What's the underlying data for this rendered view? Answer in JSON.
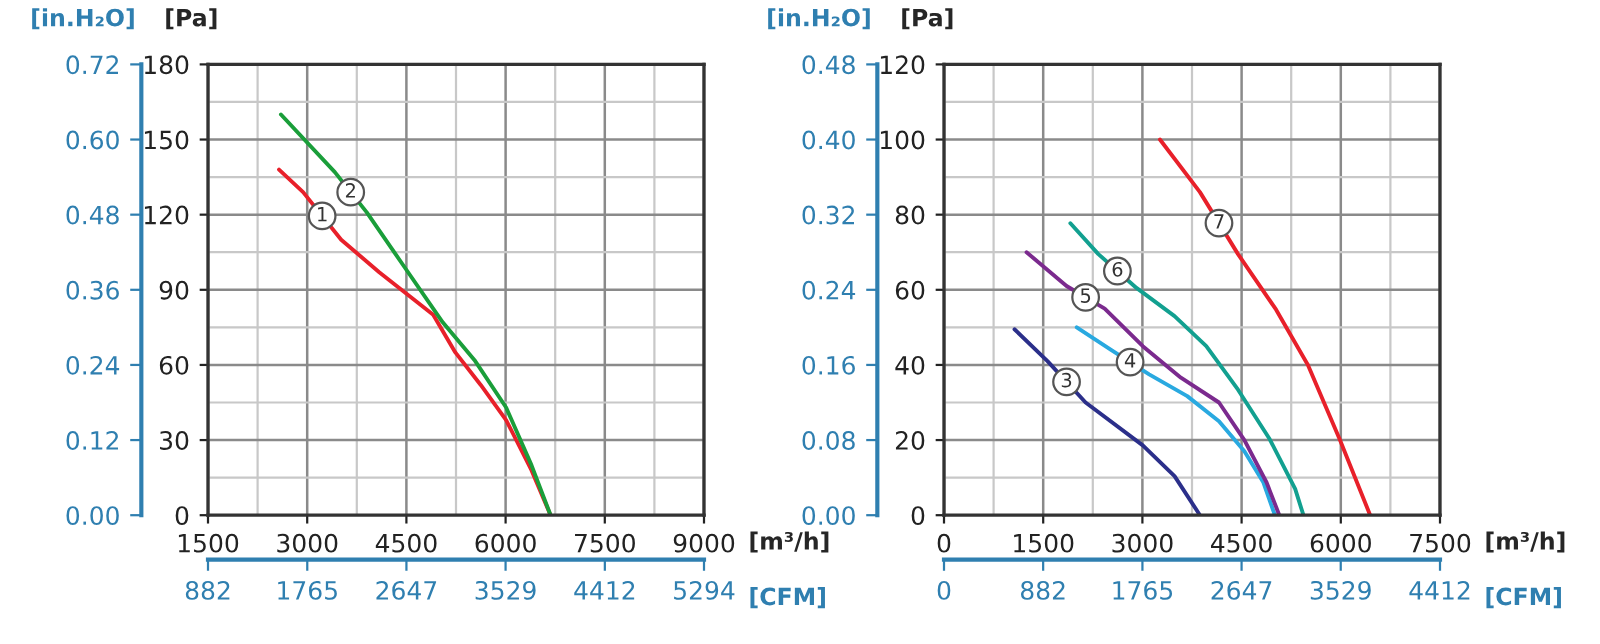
{
  "chart_data": [
    {
      "type": "line",
      "xlabel": "[m³/h]",
      "ylabel": "[Pa]",
      "y2label": "[in.H₂O]",
      "x2label": "[CFM]",
      "xlim": [
        1500,
        9000
      ],
      "xticks": [
        1500,
        3000,
        4500,
        6000,
        7500,
        9000
      ],
      "ylim": [
        0,
        180
      ],
      "yticks": [
        0,
        30,
        60,
        90,
        120,
        150,
        180
      ],
      "y2lim": [
        0,
        0.72
      ],
      "y2ticks": [
        {
          "value": 0,
          "label": "0.00"
        },
        {
          "value": 0.12,
          "label": "0.12"
        },
        {
          "value": 0.24,
          "label": "0.24"
        },
        {
          "value": 0.36,
          "label": "0.36"
        },
        {
          "value": 0.48,
          "label": "0.48"
        },
        {
          "value": 0.6,
          "label": "0.60"
        },
        {
          "value": 0.72,
          "label": "0.72"
        }
      ],
      "x2lim": [
        882,
        5294
      ],
      "x2ticks": [
        882,
        1765,
        2647,
        3529,
        4412,
        5294
      ],
      "grid": true,
      "legend": false,
      "marker": "none",
      "line_style": "solid",
      "series": [
        {
          "name": "1",
          "color": "#e8202a",
          "x": [
            2574,
            2938,
            3514,
            4089,
            4521,
            4905,
            5240,
            5624,
            6008,
            6391,
            6680
          ],
          "values": [
            138,
            129,
            110,
            97,
            88,
            80,
            65,
            52,
            38,
            18,
            0
          ]
        },
        {
          "name": "2",
          "color": "#1a9e3a",
          "x": [
            2603,
            3418,
            3898,
            4473,
            5049,
            5528,
            6008,
            6391,
            6680
          ],
          "values": [
            160,
            137,
            121,
            99,
            77,
            62,
            43,
            20,
            0
          ]
        }
      ]
    },
    {
      "type": "line",
      "xlabel": "[m³/h]",
      "ylabel": "[Pa]",
      "y2label": "[in.H₂O]",
      "x2label": "[CFM]",
      "xlim": [
        0,
        7500
      ],
      "xticks": [
        0,
        1500,
        3000,
        4500,
        6000,
        7500
      ],
      "ylim": [
        0,
        120
      ],
      "yticks": [
        0,
        20,
        40,
        60,
        80,
        100,
        120
      ],
      "y2lim": [
        0,
        0.48
      ],
      "y2ticks": [
        {
          "value": 0,
          "label": "0.00"
        },
        {
          "value": 0.08,
          "label": "0.08"
        },
        {
          "value": 0.16,
          "label": "0.16"
        },
        {
          "value": 0.24,
          "label": "0.24"
        },
        {
          "value": 0.32,
          "label": "0.32"
        },
        {
          "value": 0.4,
          "label": "0.40"
        },
        {
          "value": 0.48,
          "label": "0.48"
        }
      ],
      "x2lim": [
        0,
        4412
      ],
      "x2ticks": [
        0,
        882,
        1765,
        2647,
        3529,
        4412
      ],
      "grid": true,
      "legend": false,
      "marker": "none",
      "line_style": "solid",
      "series": [
        {
          "name": "3",
          "color": "#2b2f8a",
          "x": [
            1066,
            1565,
            2141,
            3006,
            3486,
            3870
          ],
          "values": [
            49.5,
            41,
            30,
            18.6,
            10.4,
            0
          ]
        },
        {
          "name": "4",
          "color": "#29a9e0",
          "x": [
            2007,
            2526,
            3102,
            3678,
            4158,
            4542,
            4830,
            5003
          ],
          "values": [
            50,
            44,
            37.5,
            31.7,
            25,
            17,
            8.7,
            0
          ]
        },
        {
          "name": "5",
          "color": "#7b2a8e",
          "x": [
            1248,
            1853,
            2430,
            3006,
            3582,
            4158,
            4542,
            4878,
            5070
          ],
          "values": [
            70,
            61,
            55,
            45,
            36.6,
            30,
            20,
            8.7,
            0
          ]
        },
        {
          "name": "6",
          "color": "#12a090",
          "x": [
            1911,
            2334,
            2910,
            3486,
            3966,
            4446,
            4926,
            5310,
            5435
          ],
          "values": [
            77.7,
            69.5,
            60.5,
            53,
            45,
            33.4,
            20.2,
            7,
            0
          ]
        },
        {
          "name": "7",
          "color": "#e8202a",
          "x": [
            3265,
            3870,
            4446,
            5022,
            5503,
            5983,
            6444
          ],
          "values": [
            100,
            86,
            69.5,
            54.7,
            40,
            20.2,
            0
          ]
        }
      ]
    }
  ]
}
